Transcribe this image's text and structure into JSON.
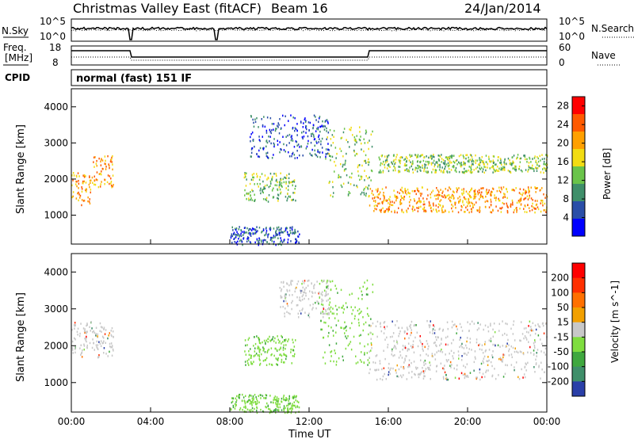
{
  "header": {
    "station": "Christmas Valley East (fitACF)",
    "beam": "Beam 16",
    "date": "24/Jan/2014"
  },
  "aux_panels": {
    "nsky": {
      "label": "N.Sky",
      "ticks": [
        "10^5",
        "10^0"
      ]
    },
    "nsearch": {
      "label": "N.Search",
      "ticks": [
        "10^5",
        "10^0"
      ]
    },
    "freq": {
      "label_line1": "Freq.",
      "label_line2": "[MHz]",
      "ticks": [
        "18",
        "8"
      ]
    },
    "nave": {
      "label": "Nave",
      "ticks": [
        "60",
        "0"
      ]
    },
    "cpid": {
      "label": "CPID",
      "mode_text": "normal (fast) 151 IF"
    }
  },
  "chart_data": [
    {
      "type": "heatmap",
      "panel": "power",
      "xlabel": "Time UT",
      "ylabel": "Slant Range [km]",
      "x_ticks": [
        "00:00",
        "04:00",
        "08:00",
        "12:00",
        "16:00",
        "20:00",
        "00:00"
      ],
      "xlim_hours": [
        0,
        24
      ],
      "y_ticks": [
        1000,
        2000,
        3000,
        4000
      ],
      "ylim": [
        200,
        4500
      ],
      "colorbar": {
        "label": "Power [dB]",
        "ticks": [
          4,
          8,
          12,
          16,
          20,
          24,
          28
        ],
        "range": [
          0,
          30
        ],
        "colors": [
          "#0000ff",
          "#2a4ea8",
          "#3f8f6a",
          "#6ac44a",
          "#f2dc12",
          "#ffa000",
          "#ff5a00",
          "#ff0000"
        ]
      },
      "scatter_regions": [
        {
          "t0": 0.0,
          "t1": 1.0,
          "r0": 1300,
          "r1": 2200,
          "level": "high"
        },
        {
          "t0": 1.0,
          "t1": 2.1,
          "r0": 1800,
          "r1": 2700,
          "level": "high"
        },
        {
          "t0": 8.7,
          "t1": 11.3,
          "r0": 1400,
          "r1": 2200,
          "level": "mid"
        },
        {
          "t0": 9.0,
          "t1": 13.0,
          "r0": 2600,
          "r1": 3800,
          "level": "low"
        },
        {
          "t0": 12.8,
          "t1": 15.2,
          "r0": 1500,
          "r1": 3500,
          "level": "mid"
        },
        {
          "t0": 15.0,
          "t1": 24.0,
          "r0": 1100,
          "r1": 1800,
          "level": "high"
        },
        {
          "t0": 15.5,
          "t1": 24.0,
          "r0": 2200,
          "r1": 2700,
          "level": "mid"
        },
        {
          "t0": 8.0,
          "t1": 11.5,
          "r0": 200,
          "r1": 700,
          "level": "low"
        }
      ]
    },
    {
      "type": "heatmap",
      "panel": "velocity",
      "xlabel": "Time UT",
      "ylabel": "Slant Range [km]",
      "x_ticks": [
        "00:00",
        "04:00",
        "08:00",
        "12:00",
        "16:00",
        "20:00",
        "00:00"
      ],
      "xlim_hours": [
        0,
        24
      ],
      "y_ticks": [
        1000,
        2000,
        3000,
        4000
      ],
      "ylim": [
        200,
        4500
      ],
      "colorbar": {
        "label": "Velocity [m s^-1]",
        "ticks": [
          200,
          100,
          50,
          15,
          -15,
          -50,
          -100,
          -200
        ],
        "colors": [
          "#2a3fa8",
          "#3f8f6a",
          "#3fa83f",
          "#7fdd3f",
          "#c8c8c8",
          "#f2a000",
          "#ff7000",
          "#ff3000",
          "#ff0000"
        ]
      },
      "scatter_regions": [
        {
          "t0": 0.0,
          "t1": 2.1,
          "r0": 1700,
          "r1": 2700,
          "level": "grey"
        },
        {
          "t0": 8.7,
          "t1": 11.3,
          "r0": 1500,
          "r1": 2300,
          "level": "green"
        },
        {
          "t0": 12.5,
          "t1": 15.2,
          "r0": 1500,
          "r1": 3800,
          "level": "green"
        },
        {
          "t0": 10.5,
          "t1": 13.0,
          "r0": 2800,
          "r1": 3800,
          "level": "grey"
        },
        {
          "t0": 15.0,
          "t1": 24.0,
          "r0": 1100,
          "r1": 2700,
          "level": "grey"
        },
        {
          "t0": 8.0,
          "t1": 11.5,
          "r0": 200,
          "r1": 700,
          "level": "green"
        }
      ]
    }
  ]
}
